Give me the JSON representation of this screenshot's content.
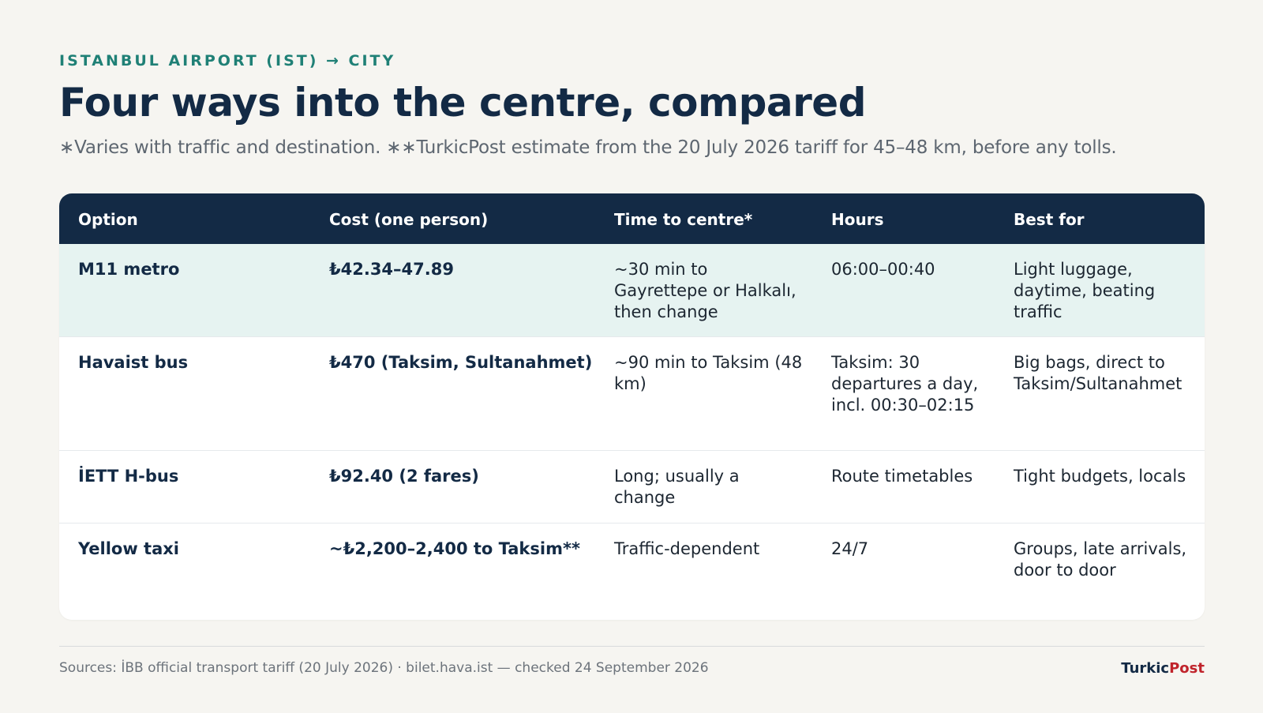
{
  "header": {
    "kicker": "ISTANBUL AIRPORT (IST) → CITY",
    "title": "Four ways into the centre, compared",
    "subtitle": "∗Varies with traffic and destination. ∗∗TurkicPost estimate from the 20 July 2026 tariff for 45–48 km, before any tolls."
  },
  "table": {
    "columns": [
      "Option",
      "Cost (one person)",
      "Time to centre*",
      "Hours",
      "Best for"
    ],
    "rows": [
      {
        "option": "M11 metro",
        "cost": "₺42.34–47.89",
        "time": "~30 min to Gayrettepe or Halkalı, then change",
        "hours": "06:00–00:40",
        "best_for": "Light luggage, daytime, beating traffic"
      },
      {
        "option": "Havaist bus",
        "cost": "₺470 (Taksim, Sultanahmet)",
        "time": "~90 min to Taksim (48 km)",
        "hours": "Taksim: 30 departures a day, incl. 00:30–02:15",
        "best_for": "Big bags, direct to Taksim/Sultanahmet"
      },
      {
        "option": "İETT H-bus",
        "cost": "₺92.40 (2 fares)",
        "time": "Long; usually a change",
        "hours": "Route timetables",
        "best_for": "Tight budgets, locals"
      },
      {
        "option": "Yellow taxi",
        "cost": "~₺2,200–2,400 to Taksim**",
        "time": "Traffic-dependent",
        "hours": "24/7",
        "best_for": "Groups, late arrivals, door to door"
      }
    ]
  },
  "footer": {
    "sources": "Sources: İBB official transport tariff (20 July 2026) · bilet.hava.ist — checked 24 September 2026",
    "brand_part1": "Turkic",
    "brand_part2": "Post"
  },
  "colors": {
    "background": "#f6f5f1",
    "navy": "#132a45",
    "teal_accent": "#1f8076",
    "highlight_row": "#e6f3f1",
    "brand_red": "#c0232b"
  }
}
